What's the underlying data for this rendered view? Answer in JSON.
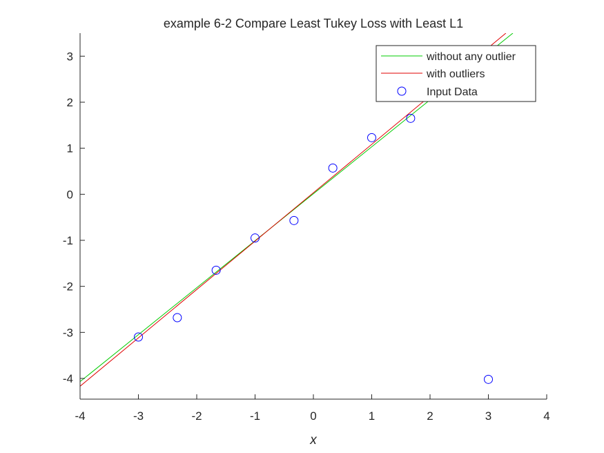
{
  "chart_data": {
    "type": "scatter",
    "title": "example 6-2 Compare Least Tukey Loss with Least L1",
    "xlabel": "x",
    "ylabel": "",
    "xlim": [
      -4,
      4
    ],
    "ylim": [
      -4.45,
      3.5
    ],
    "xticks": [
      -4,
      -3,
      -2,
      -1,
      0,
      1,
      2,
      3,
      4
    ],
    "yticks": [
      -4,
      -3,
      -2,
      -1,
      0,
      1,
      2,
      3
    ],
    "xtick_labels": [
      "-4",
      "-3",
      "-2",
      "-1",
      "0",
      "1",
      "2",
      "3",
      "4"
    ],
    "ytick_labels": [
      "-4",
      "-3",
      "-2",
      "-1",
      "0",
      "1",
      "2",
      "3"
    ],
    "grid": false,
    "legend_position": "top-right",
    "series": [
      {
        "name": "without any outlier",
        "kind": "line",
        "color": "#00cc00",
        "x": [
          -4,
          3.42
        ],
        "y": [
          -4.07,
          3.5
        ]
      },
      {
        "name": "with outliers",
        "kind": "line",
        "color": "#e00000",
        "x": [
          -4,
          3.3
        ],
        "y": [
          -4.17,
          3.5
        ]
      },
      {
        "name": "Input Data",
        "kind": "marker",
        "marker": "circle",
        "color": "#0000ff",
        "x": [
          -3,
          -2.333,
          -1.667,
          -1,
          -0.333,
          0.333,
          1,
          1.667,
          3
        ],
        "y": [
          -3.1,
          -2.68,
          -1.65,
          -0.95,
          -0.57,
          0.57,
          1.23,
          1.65,
          -4.02
        ]
      }
    ]
  }
}
